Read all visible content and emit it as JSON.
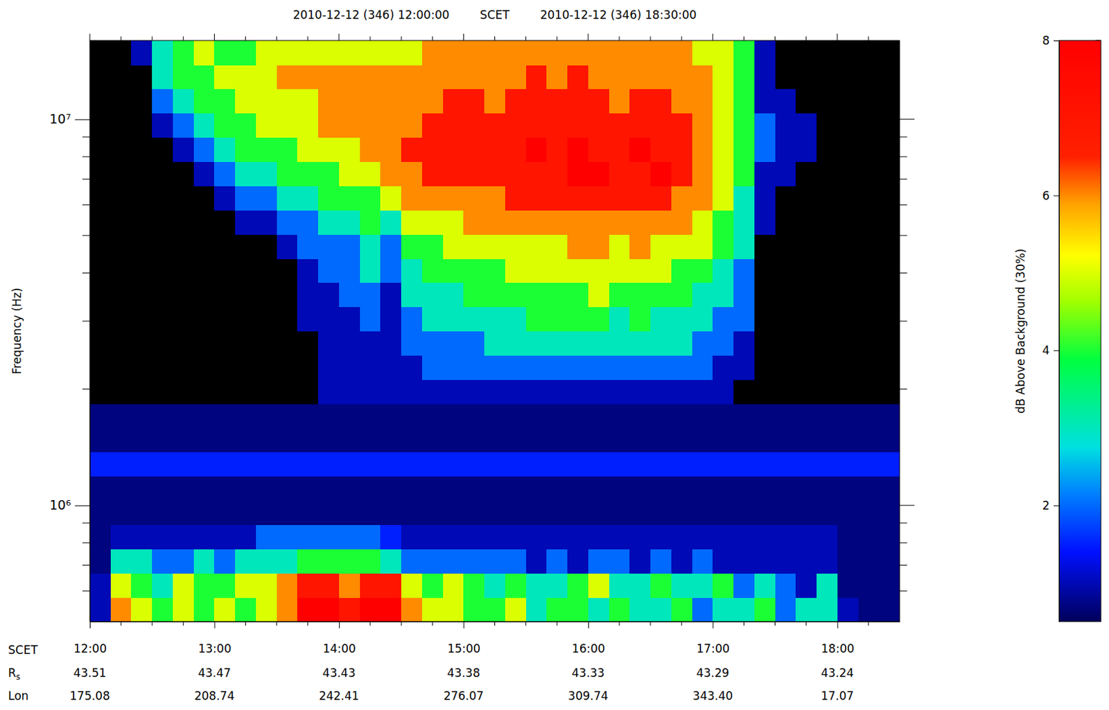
{
  "chart_data": {
    "type": "spectrogram",
    "header": [
      "2010-12-12 (346) 12:00:00",
      "SCET",
      "2010-12-12 (346) 18:30:00"
    ],
    "y_label": "Frequency (Hz)",
    "x_label": "SCET",
    "log": "y",
    "xlim": [
      720,
      1110
    ],
    "xticks": [
      {
        "value": 720,
        "label": "12:00"
      },
      {
        "value": 780,
        "label": "13:00"
      },
      {
        "value": 840,
        "label": "14:00"
      },
      {
        "value": 900,
        "label": "15:00"
      },
      {
        "value": 960,
        "label": "16:00"
      },
      {
        "value": 1020,
        "label": "17:00"
      },
      {
        "value": 1080,
        "label": "18:00"
      }
    ],
    "xticks_minor": [
      735,
      750,
      765,
      795,
      810,
      825,
      855,
      870,
      885,
      915,
      930,
      945,
      975,
      990,
      1005,
      1035,
      1050,
      1065,
      1095
    ],
    "ylim": [
      500000,
      16000000
    ],
    "yticks": [
      {
        "value": 1000000,
        "label": "10⁶"
      },
      {
        "value": 10000000,
        "label": "10⁷"
      }
    ],
    "yticks_minor": [
      600000,
      700000,
      800000,
      900000,
      2000000,
      3000000,
      4000000,
      5000000,
      6000000,
      7000000,
      8000000,
      9000000
    ],
    "ephemeris": [
      {
        "label": "R",
        "subscript": "s",
        "values": [
          43.51,
          43.47,
          43.43,
          43.38,
          43.33,
          43.29,
          43.24
        ]
      },
      {
        "label": "Lon",
        "values": [
          175.08,
          208.74,
          242.41,
          276.07,
          309.74,
          {
            "value": 343.4,
            "label": "343.40"
          },
          17.07
        ]
      }
    ],
    "x_edges": [
      720,
      730,
      740,
      750,
      760,
      770,
      780,
      790,
      800,
      810,
      820,
      830,
      840,
      850,
      860,
      870,
      880,
      890,
      900,
      910,
      920,
      930,
      940,
      950,
      960,
      970,
      980,
      990,
      1000,
      1010,
      1020,
      1030,
      1040,
      1050,
      1060,
      1070,
      1080,
      1090,
      1100,
      1110
    ],
    "y_edges": [
      500000,
      577700,
      667400,
      771000,
      890800,
      1029000,
      1189000,
      1374000,
      1587000,
      1834000,
      2119000,
      2448000,
      2828000,
      3267000,
      3775000,
      4361000,
      5038000,
      5821000,
      6725000,
      7769000,
      8976000,
      10370000,
      11980000,
      13840000,
      16000000
    ],
    "values": [
      [
        1,
        1,
        0.7,
        0.7,
        0.7,
        0.7,
        1.5,
        0.7,
        0.7,
        0,
        0,
        0,
        0,
        0,
        0,
        0,
        0,
        0,
        0,
        0,
        0,
        0,
        0,
        0
      ],
      [
        6,
        5,
        3,
        1,
        0.7,
        0.7,
        1.5,
        0.7,
        0.7,
        0,
        0,
        0,
        0,
        0,
        0,
        0,
        0,
        0,
        0,
        0,
        0,
        0,
        0,
        0
      ],
      [
        5,
        4,
        3,
        1,
        0.7,
        0.7,
        1.5,
        0.7,
        0.7,
        0,
        0,
        0,
        0,
        0,
        0,
        0,
        0,
        0,
        0,
        0,
        0,
        0,
        0,
        1
      ],
      [
        4,
        3,
        2,
        1,
        0.7,
        0.7,
        1.5,
        0.7,
        0.7,
        0,
        0,
        0,
        0,
        0,
        0,
        0,
        0,
        0,
        0,
        0,
        1,
        2,
        3,
        3
      ],
      [
        5,
        5,
        2,
        1,
        0.7,
        0.7,
        1.5,
        0.7,
        0.7,
        0,
        0,
        0,
        0,
        0,
        0,
        0,
        0,
        0,
        0,
        1,
        2,
        3,
        4,
        4
      ],
      [
        4,
        4,
        3,
        1,
        0.7,
        0.7,
        1.5,
        0.7,
        0.7,
        0,
        0,
        0,
        0,
        0,
        0,
        0,
        0,
        0,
        1,
        2,
        3,
        4,
        4,
        5
      ],
      [
        5,
        4,
        2,
        1,
        0.7,
        0.7,
        1.5,
        0.7,
        0.7,
        0,
        0,
        0,
        0,
        0,
        0,
        0,
        0,
        1,
        2,
        3,
        4,
        4,
        5,
        4
      ],
      [
        4,
        5,
        3,
        1,
        0.7,
        0.7,
        1.5,
        0.7,
        0.7,
        0,
        0,
        0,
        0,
        0,
        0,
        0,
        1,
        2,
        3,
        4,
        4,
        5,
        5,
        4
      ],
      [
        5,
        5,
        3,
        2,
        0.7,
        0.7,
        1.5,
        0.7,
        0.7,
        0,
        0,
        0,
        0,
        0,
        0,
        0,
        1,
        2,
        3,
        4,
        5,
        5,
        5,
        5
      ],
      [
        6,
        6,
        3,
        2,
        0.7,
        0.7,
        1.5,
        0.7,
        0.7,
        0,
        0,
        0,
        0,
        0,
        0,
        1,
        2,
        3,
        4,
        4,
        5,
        5,
        6,
        5
      ],
      [
        8,
        7,
        4,
        2,
        0.7,
        0.7,
        1.5,
        0.7,
        0.7,
        0,
        0,
        0,
        1,
        1,
        1,
        2,
        2,
        3,
        4,
        5,
        5,
        5,
        6,
        5
      ],
      [
        8,
        7,
        4,
        2,
        0.7,
        0.7,
        1.5,
        0.7,
        0.7,
        1,
        1,
        1,
        1,
        1,
        2,
        2,
        3,
        4,
        4,
        5,
        6,
        6,
        6,
        5
      ],
      [
        7,
        6,
        4,
        2,
        0.7,
        0.7,
        1.5,
        0.7,
        0.7,
        1,
        1,
        1,
        1,
        2,
        2,
        2,
        3,
        4,
        5,
        5,
        6,
        6,
        6,
        5
      ],
      [
        8,
        7,
        4,
        2,
        0.7,
        0.7,
        1.5,
        0.7,
        0.7,
        1,
        1,
        1,
        2,
        2,
        3,
        3,
        4,
        4,
        5,
        6,
        6,
        6,
        6,
        5
      ],
      [
        8,
        7,
        3,
        1.5,
        0.7,
        0.7,
        1.5,
        0.7,
        0.7,
        1,
        1,
        1,
        1,
        1,
        2,
        2,
        3,
        5,
        6,
        6,
        6,
        6,
        6,
        5
      ],
      [
        6,
        5,
        2,
        1,
        0.7,
        0.7,
        1.5,
        0.7,
        0.7,
        1,
        1,
        2,
        2,
        3,
        3,
        4,
        5,
        6,
        6,
        7,
        6,
        6,
        6,
        5
      ],
      [
        5,
        4,
        2,
        1,
        0.7,
        0.7,
        1.5,
        0.7,
        0.7,
        1,
        2,
        2,
        3,
        3,
        4,
        4,
        5,
        6,
        7,
        7,
        7,
        6,
        6,
        6
      ],
      [
        5,
        5,
        2,
        1,
        0.7,
        0.7,
        1.5,
        0.7,
        0.7,
        1,
        2,
        2,
        3,
        3,
        4,
        5,
        5,
        6,
        7,
        7,
        7,
        7,
        6,
        6
      ],
      [
        4,
        4,
        2,
        1,
        0.7,
        0.7,
        1.5,
        0.7,
        0.7,
        1,
        2,
        2,
        3,
        4,
        4,
        5,
        6,
        6,
        7,
        7,
        7,
        7,
        6,
        6
      ],
      [
        4,
        3,
        2,
        1,
        0.7,
        0.7,
        1.5,
        0.7,
        0.7,
        1,
        2,
        3,
        3,
        4,
        4,
        5,
        6,
        6,
        7,
        7,
        7,
        6,
        6,
        6
      ],
      [
        5,
        4,
        2,
        1,
        0.7,
        0.7,
        1.5,
        0.7,
        0.7,
        1,
        2,
        3,
        3,
        4,
        5,
        5,
        6,
        7,
        7,
        7,
        7,
        7,
        6,
        6
      ],
      [
        3,
        3,
        1,
        1,
        0.7,
        0.7,
        1.5,
        0.7,
        0.7,
        1,
        2,
        3,
        4,
        4,
        5,
        5,
        6,
        7,
        7,
        8,
        7,
        7,
        7,
        6
      ],
      [
        4,
        3,
        2,
        1,
        0.7,
        0.7,
        1.5,
        0.7,
        0.7,
        1,
        2,
        3,
        4,
        4,
        5,
        5,
        6,
        7,
        7,
        7,
        7,
        7,
        6,
        6
      ],
      [
        4,
        4,
        1,
        1,
        0.7,
        0.7,
        1.5,
        0.7,
        0.7,
        1,
        2,
        3,
        4,
        4,
        5,
        6,
        6,
        7,
        8,
        8,
        7,
        7,
        7,
        6
      ],
      [
        3,
        5,
        2,
        1,
        0.7,
        0.7,
        1.5,
        0.7,
        0.7,
        1,
        2,
        3,
        4,
        5,
        5,
        6,
        6,
        7,
        8,
        7,
        7,
        7,
        6,
        6
      ],
      [
        4,
        3,
        2,
        1,
        0.7,
        0.7,
        1.5,
        0.7,
        0.7,
        1,
        2,
        3,
        3,
        4,
        5,
        5,
        6,
        7,
        7,
        7,
        7,
        6,
        6,
        6
      ],
      [
        3,
        3,
        1,
        1,
        0.7,
        0.7,
        1.5,
        0.7,
        0.7,
        1,
        2,
        3,
        4,
        4,
        5,
        6,
        6,
        7,
        7,
        8,
        7,
        7,
        6,
        6
      ],
      [
        3,
        4,
        2,
        1,
        0.7,
        0.7,
        1.5,
        0.7,
        0.7,
        1,
        2,
        3,
        3,
        4,
        5,
        5,
        6,
        7,
        8,
        7,
        7,
        7,
        6,
        6
      ],
      [
        4,
        3,
        1,
        1,
        0.7,
        0.7,
        1.5,
        0.7,
        0.7,
        1,
        2,
        3,
        3,
        4,
        4,
        5,
        6,
        6,
        7,
        7,
        7,
        6,
        6,
        6
      ],
      [
        2,
        3,
        2,
        1,
        0.7,
        0.7,
        1.5,
        0.7,
        0.7,
        1,
        2,
        2,
        3,
        3,
        4,
        5,
        5,
        6,
        6,
        6,
        6,
        6,
        6,
        5
      ],
      [
        3,
        4,
        1,
        1,
        0.7,
        0.7,
        1.5,
        0.7,
        0.7,
        1,
        1,
        2,
        2,
        3,
        3,
        4,
        4,
        5,
        5,
        5,
        5,
        5,
        5,
        5
      ],
      [
        3,
        2,
        1,
        1,
        0.7,
        0.7,
        1.5,
        0.7,
        0.7,
        0,
        1,
        1,
        2,
        2,
        2,
        3,
        3,
        3,
        4,
        4,
        4,
        4,
        4,
        4
      ],
      [
        4,
        3,
        1,
        1,
        0.7,
        0.7,
        1.5,
        0.7,
        0.7,
        0,
        0,
        0,
        0,
        0,
        0,
        0,
        1,
        1,
        1,
        2,
        2,
        1,
        1,
        1
      ],
      [
        2,
        2,
        1,
        1,
        0.7,
        0.7,
        1.5,
        0.7,
        0.7,
        0,
        0,
        0,
        0,
        0,
        0,
        0,
        0,
        0,
        1,
        1,
        1,
        1,
        0,
        0
      ],
      [
        3,
        1,
        1,
        1,
        0.7,
        0.7,
        1.5,
        0.7,
        0.7,
        0,
        0,
        0,
        0,
        0,
        0,
        0,
        0,
        0,
        0,
        1,
        1,
        0,
        0,
        0
      ],
      [
        3,
        3,
        1,
        1,
        0.7,
        0.7,
        1.5,
        0.7,
        0.7,
        0,
        0,
        0,
        0,
        0,
        0,
        0,
        0,
        0,
        0,
        0,
        0,
        0,
        0,
        0
      ],
      [
        1,
        0.7,
        0.7,
        0.7,
        0.7,
        0.7,
        1.5,
        0.7,
        0.7,
        0,
        0,
        0,
        0,
        0,
        0,
        0,
        0,
        0,
        0,
        0,
        0,
        0,
        0,
        0
      ],
      [
        0.7,
        0.7,
        0.7,
        0.7,
        0.7,
        0.7,
        1.5,
        0.7,
        0.7,
        0,
        0,
        0,
        0,
        0,
        0,
        0,
        0,
        0,
        0,
        0,
        0,
        0,
        0,
        0
      ],
      [
        0.7,
        0.7,
        0.7,
        0.7,
        0.7,
        0.7,
        1.5,
        0.7,
        0.7,
        0,
        0,
        0,
        0,
        0,
        0,
        0,
        0,
        0,
        0,
        0,
        0,
        0,
        0,
        0
      ]
    ],
    "colorbar": {
      "label": "dB Above Background (30%)",
      "range": [
        0.5,
        8
      ],
      "ticks": [
        2,
        4,
        6,
        8
      ]
    }
  }
}
